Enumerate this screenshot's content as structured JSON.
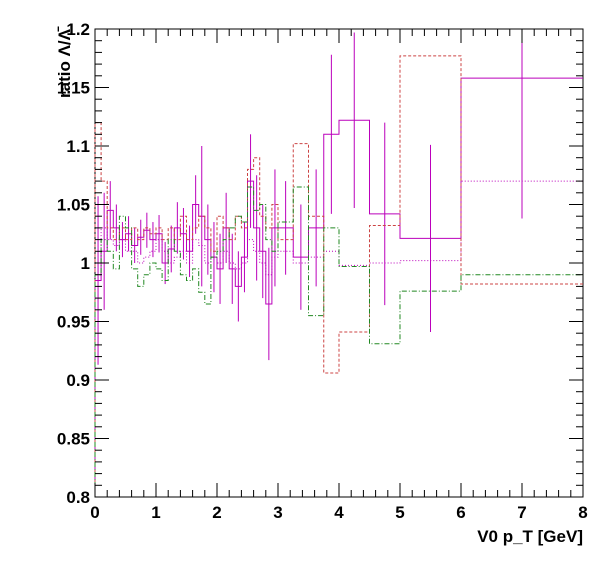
{
  "chart_data": {
    "type": "line",
    "title": "",
    "xlabel": "V0 p_T [GeV]",
    "ylabel": "ratio Λ/Λ̄",
    "xlim": [
      0,
      8
    ],
    "ylim": [
      0.8,
      1.2
    ],
    "x_ticks": [
      "0",
      "1",
      "2",
      "3",
      "4",
      "5",
      "6",
      "7",
      "8"
    ],
    "y_ticks": [
      "0.8",
      "0.85",
      "0.9",
      "0.95",
      "1",
      "1.05",
      "1.1",
      "1.15",
      "1.2"
    ],
    "grid": false,
    "legend": "none",
    "series": [
      {
        "style": "solid-with-errors",
        "color": "#bb00bb",
        "bins": [
          [
            0.0,
            0.1,
            0.985,
            0.072
          ],
          [
            0.1,
            0.2,
            1.01,
            0.05
          ],
          [
            0.2,
            0.3,
            1.045,
            0.025
          ],
          [
            0.3,
            0.4,
            1.03,
            0.02
          ],
          [
            0.4,
            0.5,
            1.02,
            0.015
          ],
          [
            0.5,
            0.6,
            1.025,
            0.015
          ],
          [
            0.6,
            0.7,
            1.015,
            0.015
          ],
          [
            0.7,
            0.8,
            1.022,
            0.015
          ],
          [
            0.8,
            0.9,
            1.028,
            0.015
          ],
          [
            0.9,
            1.0,
            1.02,
            0.015
          ],
          [
            1.0,
            1.1,
            1.025,
            0.016
          ],
          [
            1.1,
            1.2,
            1.0,
            0.018
          ],
          [
            1.2,
            1.3,
            1.012,
            0.02
          ],
          [
            1.3,
            1.4,
            1.03,
            0.022
          ],
          [
            1.4,
            1.5,
            1.025,
            0.022
          ],
          [
            1.5,
            1.6,
            1.01,
            0.022
          ],
          [
            1.6,
            1.7,
            1.05,
            0.025
          ],
          [
            1.7,
            1.8,
            1.04,
            0.06
          ],
          [
            1.8,
            1.9,
            1.02,
            0.03
          ],
          [
            1.9,
            2.0,
            1.005,
            0.03
          ],
          [
            2.0,
            2.1,
            0.995,
            0.03
          ],
          [
            2.1,
            2.2,
            1.03,
            0.03
          ],
          [
            2.2,
            2.3,
            0.995,
            0.03
          ],
          [
            2.3,
            2.4,
            0.98,
            0.03
          ],
          [
            2.4,
            2.5,
            1.005,
            0.03
          ],
          [
            2.5,
            2.6,
            1.07,
            0.04
          ],
          [
            2.6,
            2.7,
            1.03,
            0.045
          ],
          [
            2.7,
            2.8,
            1.01,
            0.04
          ],
          [
            2.8,
            2.9,
            0.965,
            0.048
          ],
          [
            2.9,
            3.0,
            1.03,
            0.05
          ],
          [
            3.0,
            3.25,
            1.03,
            0.04
          ],
          [
            3.25,
            3.5,
            1.005,
            0.045
          ],
          [
            3.5,
            3.75,
            1.03,
            0.05
          ],
          [
            3.75,
            4.0,
            1.11,
            0.068
          ],
          [
            4.0,
            4.5,
            1.122,
            0.075
          ],
          [
            4.5,
            5.0,
            1.042,
            0.078
          ],
          [
            5.0,
            6.0,
            1.021,
            0.08
          ],
          [
            6.0,
            8.0,
            1.158,
            0.12
          ]
        ]
      },
      {
        "style": "dotted",
        "color": "#bb00bb",
        "bins": [
          [
            0.0,
            0.1,
            1.0
          ],
          [
            0.1,
            0.2,
            1.03
          ],
          [
            0.2,
            0.3,
            1.02
          ],
          [
            0.3,
            0.4,
            1.015
          ],
          [
            0.4,
            0.5,
            1.02
          ],
          [
            0.5,
            0.6,
            1.01
          ],
          [
            0.6,
            0.7,
            1.01
          ],
          [
            0.7,
            0.8,
            1.0
          ],
          [
            0.8,
            0.9,
            1.005
          ],
          [
            0.9,
            1.0,
            1.01
          ],
          [
            1.0,
            1.1,
            1.02
          ],
          [
            1.1,
            1.2,
            1.01
          ],
          [
            1.2,
            1.3,
            1.0
          ],
          [
            1.3,
            1.4,
            1.005
          ],
          [
            1.4,
            1.5,
            1.01
          ],
          [
            1.5,
            1.6,
            1.0
          ],
          [
            1.6,
            1.7,
            1.02
          ],
          [
            1.7,
            1.8,
            1.015
          ],
          [
            1.8,
            1.9,
            1.0
          ],
          [
            1.9,
            2.0,
            1.005
          ],
          [
            2.0,
            2.1,
            1.0
          ],
          [
            2.1,
            2.2,
            1.01
          ],
          [
            2.2,
            2.3,
            1.0
          ],
          [
            2.3,
            2.4,
            0.995
          ],
          [
            2.4,
            2.5,
            1.0
          ],
          [
            2.5,
            2.6,
            1.02
          ],
          [
            2.6,
            2.7,
            1.01
          ],
          [
            2.7,
            2.8,
            1.0
          ],
          [
            2.8,
            2.9,
            0.99
          ],
          [
            2.9,
            3.0,
            1.005
          ],
          [
            3.0,
            3.25,
            1.01
          ],
          [
            3.25,
            3.5,
            1.0
          ],
          [
            3.5,
            3.75,
            1.005
          ],
          [
            3.75,
            4.0,
            1.01
          ],
          [
            4.0,
            4.5,
            0.998
          ],
          [
            4.5,
            5.0,
            1.0
          ],
          [
            5.0,
            6.0,
            1.002
          ],
          [
            6.0,
            8.0,
            1.07
          ]
        ]
      },
      {
        "style": "dashed",
        "color": "#cc4444",
        "bins": [
          [
            0.0,
            0.1,
            1.12
          ],
          [
            0.1,
            0.2,
            1.07
          ],
          [
            0.2,
            0.3,
            1.03
          ],
          [
            0.3,
            0.4,
            1.02
          ],
          [
            0.4,
            0.5,
            1.03
          ],
          [
            0.5,
            0.6,
            1.02
          ],
          [
            0.6,
            0.7,
            1.03
          ],
          [
            0.7,
            0.8,
            1.02
          ],
          [
            0.8,
            0.9,
            1.03
          ],
          [
            0.9,
            1.0,
            1.025
          ],
          [
            1.0,
            1.1,
            1.03
          ],
          [
            1.1,
            1.2,
            1.02
          ],
          [
            1.2,
            1.3,
            1.03
          ],
          [
            1.3,
            1.4,
            1.02
          ],
          [
            1.4,
            1.5,
            1.04
          ],
          [
            1.5,
            1.6,
            1.02
          ],
          [
            1.6,
            1.7,
            1.03
          ],
          [
            1.7,
            1.8,
            1.04
          ],
          [
            1.8,
            1.9,
            1.03
          ],
          [
            1.9,
            2.0,
            1.01
          ],
          [
            2.0,
            2.1,
            1.04
          ],
          [
            2.1,
            2.2,
            1.03
          ],
          [
            2.2,
            2.3,
            1.02
          ],
          [
            2.3,
            2.4,
            1.04
          ],
          [
            2.4,
            2.5,
            1.03
          ],
          [
            2.5,
            2.6,
            1.08
          ],
          [
            2.6,
            2.7,
            1.09
          ],
          [
            2.7,
            2.8,
            1.04
          ],
          [
            2.8,
            2.9,
            1.03
          ],
          [
            2.9,
            3.0,
            1.05
          ],
          [
            3.0,
            3.25,
            1.02
          ],
          [
            3.25,
            3.5,
            1.102
          ],
          [
            3.5,
            3.75,
            1.04
          ],
          [
            3.75,
            4.0,
            0.906
          ],
          [
            4.0,
            4.5,
            0.941
          ],
          [
            4.5,
            5.0,
            1.032
          ],
          [
            5.0,
            6.0,
            1.177
          ],
          [
            6.0,
            8.0,
            0.982
          ]
        ]
      },
      {
        "style": "dashdot",
        "color": "#228822",
        "bins": [
          [
            0.0,
            0.1,
            0.99
          ],
          [
            0.1,
            0.2,
            1.02
          ],
          [
            0.2,
            0.3,
            1.01
          ],
          [
            0.3,
            0.4,
            0.995
          ],
          [
            0.4,
            0.5,
            1.04
          ],
          [
            0.5,
            0.6,
            1.03
          ],
          [
            0.6,
            0.7,
            0.995
          ],
          [
            0.7,
            0.8,
            0.98
          ],
          [
            0.8,
            0.9,
            0.99
          ],
          [
            0.9,
            1.0,
            1.0
          ],
          [
            1.0,
            1.1,
            0.995
          ],
          [
            1.1,
            1.2,
            0.985
          ],
          [
            1.2,
            1.3,
            1.02
          ],
          [
            1.3,
            1.4,
            1.01
          ],
          [
            1.4,
            1.5,
            0.99
          ],
          [
            1.5,
            1.6,
            0.985
          ],
          [
            1.6,
            1.7,
            0.995
          ],
          [
            1.7,
            1.8,
            0.975
          ],
          [
            1.8,
            1.9,
            0.965
          ],
          [
            1.9,
            2.0,
            1.005
          ],
          [
            2.0,
            2.1,
            1.01
          ],
          [
            2.1,
            2.2,
            1.02
          ],
          [
            2.2,
            2.3,
            1.03
          ],
          [
            2.3,
            2.4,
            1.04
          ],
          [
            2.4,
            2.5,
            1.035
          ],
          [
            2.5,
            2.6,
            1.065
          ],
          [
            2.6,
            2.7,
            1.045
          ],
          [
            2.7,
            2.8,
            1.05
          ],
          [
            2.8,
            2.9,
            1.02
          ],
          [
            2.9,
            3.0,
            1.01
          ],
          [
            3.0,
            3.25,
            1.035
          ],
          [
            3.25,
            3.5,
            1.065
          ],
          [
            3.5,
            3.75,
            0.955
          ],
          [
            3.75,
            4.0,
            1.03
          ],
          [
            4.0,
            4.5,
            0.997
          ],
          [
            4.5,
            5.0,
            0.931
          ],
          [
            5.0,
            6.0,
            0.976
          ],
          [
            6.0,
            8.0,
            0.99
          ]
        ]
      }
    ]
  }
}
